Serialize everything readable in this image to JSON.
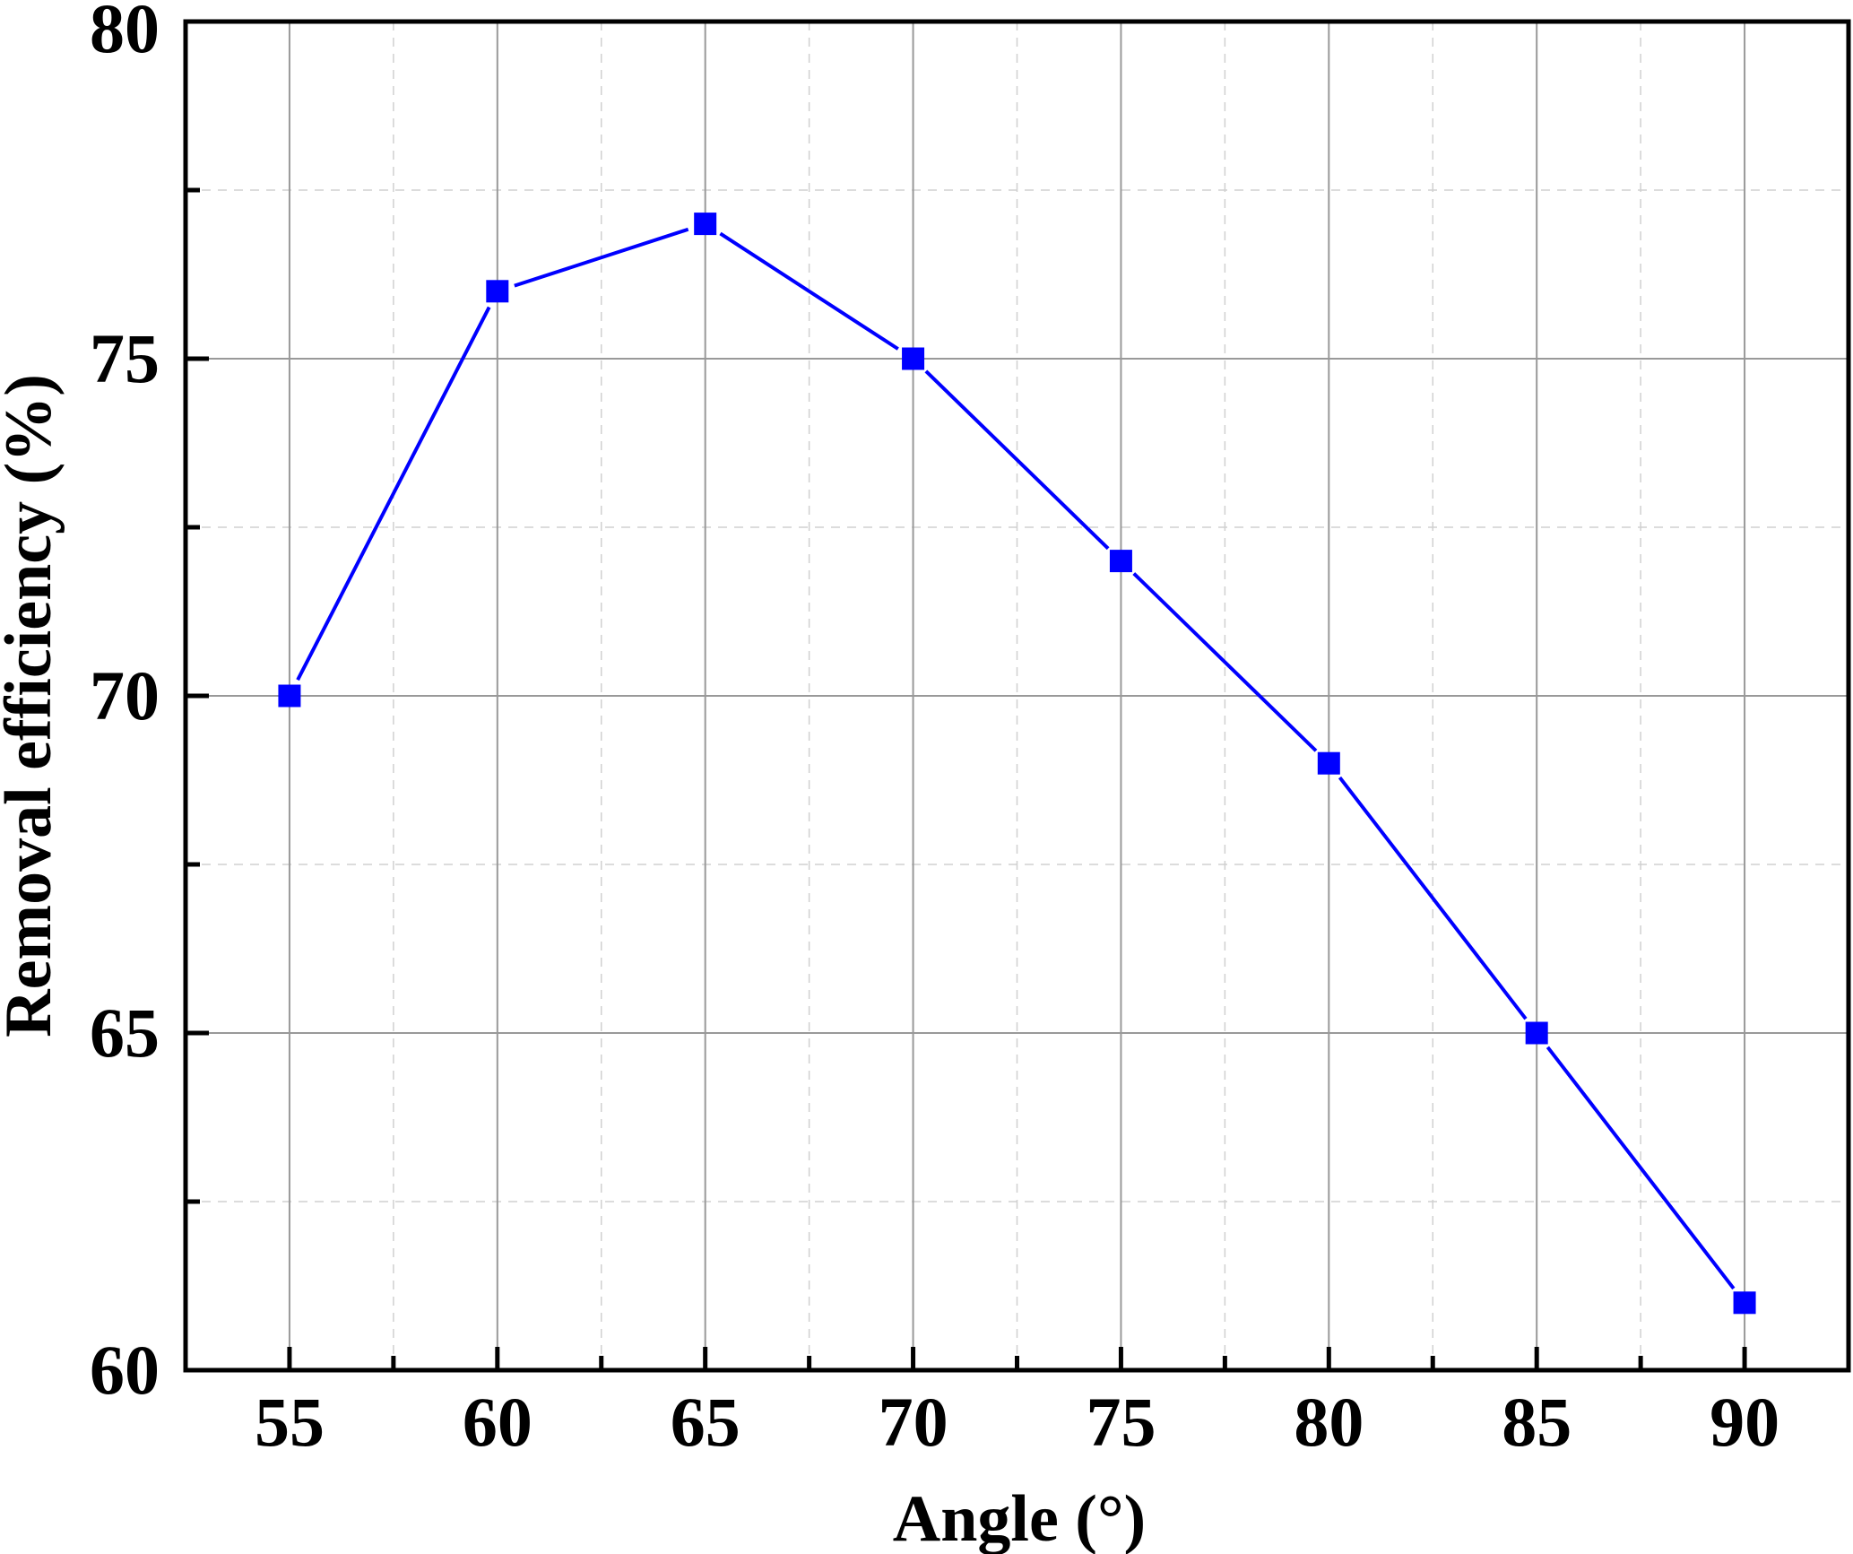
{
  "chart_data": {
    "type": "line",
    "xlabel": "Angle (°)",
    "ylabel": "Removal efficiency (%)",
    "x": [
      55,
      60,
      65,
      70,
      75,
      80,
      85,
      90
    ],
    "xlim": [
      52.5,
      92.5
    ],
    "ylim": [
      60,
      80
    ],
    "x_ticks": [
      55,
      60,
      65,
      70,
      75,
      80,
      85,
      90
    ],
    "x_tick_labels": [
      "55",
      "60",
      "65",
      "70",
      "75",
      "80",
      "85",
      "90"
    ],
    "x_minor_ticks": [
      57.5,
      62.5,
      67.5,
      72.5,
      77.5,
      82.5,
      87.5
    ],
    "y_ticks": [
      60,
      65,
      70,
      75,
      80
    ],
    "y_tick_labels": [
      "60",
      "65",
      "70",
      "75",
      "80"
    ],
    "y_minor_ticks": [
      62.5,
      67.5,
      72.5,
      77.5
    ],
    "grid": true,
    "marker": "square",
    "colors": {
      "series": "#0000FF",
      "axis": "#000000",
      "major_grid": "#999999",
      "minor_grid": "#d0d0d0"
    },
    "series": [
      {
        "values": [
          70,
          76,
          77,
          75,
          72,
          69,
          65,
          61
        ]
      }
    ]
  }
}
